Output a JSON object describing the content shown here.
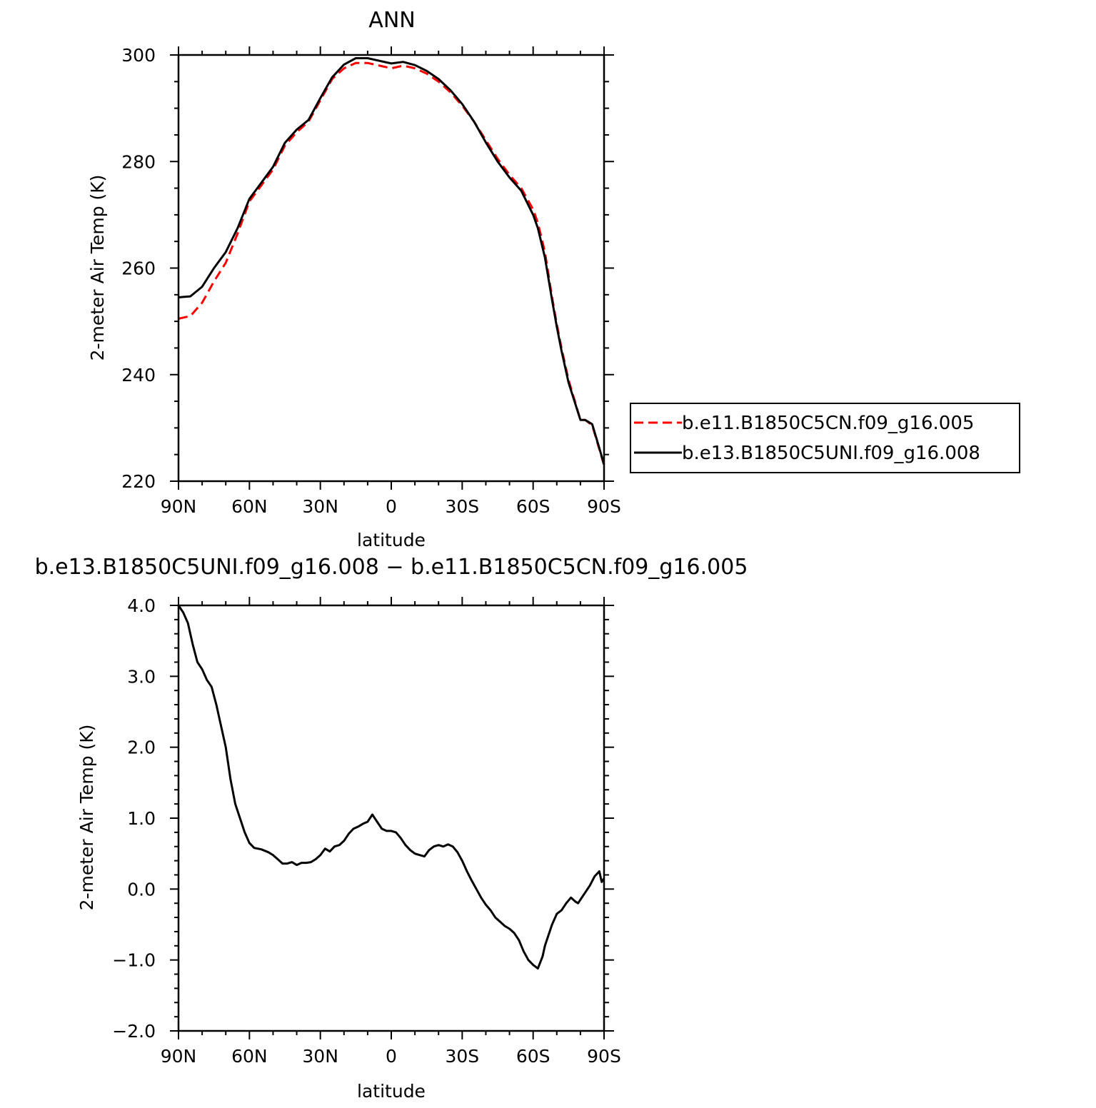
{
  "chart_data": [
    {
      "type": "line",
      "title": "ANN",
      "xlabel": "latitude",
      "ylabel": "2-meter Air Temp (K)",
      "xlim": [
        90,
        -90
      ],
      "ylim": [
        220,
        300
      ],
      "xticks": [
        90,
        60,
        30,
        0,
        -30,
        -60,
        -90
      ],
      "xtick_labels": [
        "90N",
        "60N",
        "30N",
        "0",
        "30S",
        "60S",
        "90S"
      ],
      "yticks": [
        220,
        240,
        260,
        280,
        300
      ],
      "ytick_labels": [
        "220",
        "240",
        "260",
        "280",
        "300"
      ],
      "grid": false,
      "legend_position": "right",
      "series": [
        {
          "name": "b.e11.B1850C5CN.f09_g16.005",
          "color": "#ff0000",
          "dash": "dashed",
          "x": [
            90,
            85,
            80,
            75,
            70,
            65,
            60,
            55,
            50,
            45,
            40,
            35,
            30,
            25,
            20,
            15,
            10,
            5,
            0,
            -5,
            -10,
            -15,
            -20,
            -25,
            -30,
            -35,
            -40,
            -45,
            -50,
            -55,
            -60,
            -62,
            -65,
            -68,
            -70,
            -72,
            -75,
            -80,
            -82,
            -85,
            -88,
            -90
          ],
          "values": [
            250.5,
            251.0,
            253.5,
            257.5,
            261.0,
            266.5,
            272.5,
            275.5,
            278.5,
            283.0,
            285.5,
            287.5,
            291.5,
            295.5,
            297.5,
            298.5,
            298.5,
            298.0,
            297.5,
            298.0,
            297.5,
            296.5,
            295.0,
            293.0,
            290.5,
            287.5,
            284.0,
            280.5,
            277.5,
            275.0,
            271.0,
            268.5,
            263.0,
            254.5,
            249.5,
            245.0,
            239.0,
            231.5,
            231.5,
            230.5,
            226.0,
            223.0
          ]
        },
        {
          "name": "b.e13.B1850C5UNI.f09_g16.008",
          "color": "#000000",
          "dash": "solid",
          "x": [
            90,
            85,
            80,
            75,
            70,
            65,
            60,
            55,
            50,
            45,
            40,
            35,
            30,
            25,
            20,
            15,
            10,
            5,
            0,
            -5,
            -10,
            -15,
            -20,
            -25,
            -30,
            -35,
            -40,
            -45,
            -50,
            -55,
            -60,
            -62,
            -65,
            -68,
            -70,
            -72,
            -75,
            -80,
            -82,
            -85,
            -88,
            -90
          ],
          "values": [
            254.5,
            254.7,
            256.5,
            260.0,
            263.0,
            267.5,
            273.0,
            276.0,
            279.0,
            283.5,
            286.0,
            287.8,
            291.9,
            295.8,
            298.2,
            299.4,
            299.4,
            298.9,
            298.4,
            298.7,
            298.1,
            297.0,
            295.5,
            293.4,
            290.8,
            287.5,
            283.6,
            280.0,
            277.0,
            274.5,
            270.0,
            267.5,
            262.0,
            254.0,
            249.0,
            244.5,
            238.5,
            231.5,
            231.5,
            230.7,
            226.2,
            223.1
          ]
        }
      ]
    },
    {
      "type": "line",
      "title": "b.e13.B1850C5UNI.f09_g16.008 − b.e11.B1850C5CN.f09_g16.005",
      "xlabel": "latitude",
      "ylabel": "2-meter Air Temp (K)",
      "xlim": [
        90,
        -90
      ],
      "ylim": [
        -2.0,
        4.0
      ],
      "xticks": [
        90,
        60,
        30,
        0,
        -30,
        -60,
        -90
      ],
      "xtick_labels": [
        "90N",
        "60N",
        "30N",
        "0",
        "30S",
        "60S",
        "90S"
      ],
      "yticks": [
        -2.0,
        -1.0,
        0.0,
        1.0,
        2.0,
        3.0,
        4.0
      ],
      "ytick_labels": [
        "−2.0",
        "−1.0",
        "0.0",
        "1.0",
        "2.0",
        "3.0",
        "4.0"
      ],
      "grid": false,
      "series": [
        {
          "color": "#000000",
          "dash": "solid",
          "x": [
            90,
            88,
            86,
            84,
            82,
            80,
            78,
            76,
            74,
            72,
            70,
            68,
            66,
            64,
            62,
            60,
            58,
            55,
            52,
            50,
            48,
            46,
            44,
            42,
            40,
            38,
            36,
            34,
            32,
            30,
            28,
            26,
            24,
            22,
            20,
            18,
            16,
            14,
            12,
            10,
            8,
            6,
            4,
            2,
            0,
            -2,
            -4,
            -6,
            -8,
            -10,
            -12,
            -14,
            -16,
            -18,
            -20,
            -22,
            -24,
            -26,
            -28,
            -30,
            -32,
            -34,
            -36,
            -38,
            -40,
            -42,
            -44,
            -46,
            -48,
            -50,
            -52,
            -54,
            -56,
            -58,
            -60,
            -62,
            -64,
            -65,
            -66,
            -68,
            -70,
            -72,
            -74,
            -76,
            -78,
            -79,
            -80,
            -82,
            -84,
            -86,
            -88,
            -89,
            -90
          ],
          "values": [
            4.0,
            3.9,
            3.75,
            3.45,
            3.2,
            3.1,
            2.95,
            2.85,
            2.6,
            2.3,
            2.0,
            1.55,
            1.2,
            1.0,
            0.8,
            0.65,
            0.58,
            0.56,
            0.52,
            0.48,
            0.42,
            0.36,
            0.36,
            0.38,
            0.34,
            0.37,
            0.37,
            0.38,
            0.42,
            0.48,
            0.57,
            0.53,
            0.6,
            0.62,
            0.68,
            0.78,
            0.85,
            0.88,
            0.92,
            0.95,
            1.05,
            0.95,
            0.85,
            0.82,
            0.82,
            0.8,
            0.72,
            0.62,
            0.55,
            0.5,
            0.48,
            0.46,
            0.55,
            0.6,
            0.62,
            0.6,
            0.63,
            0.6,
            0.52,
            0.4,
            0.25,
            0.12,
            0.0,
            -0.12,
            -0.22,
            -0.3,
            -0.4,
            -0.46,
            -0.52,
            -0.56,
            -0.62,
            -0.72,
            -0.88,
            -1.0,
            -1.07,
            -1.12,
            -0.95,
            -0.8,
            -0.7,
            -0.5,
            -0.35,
            -0.3,
            -0.2,
            -0.12,
            -0.18,
            -0.2,
            -0.15,
            -0.05,
            0.05,
            0.18,
            0.25,
            0.1,
            0.15
          ]
        }
      ]
    }
  ]
}
